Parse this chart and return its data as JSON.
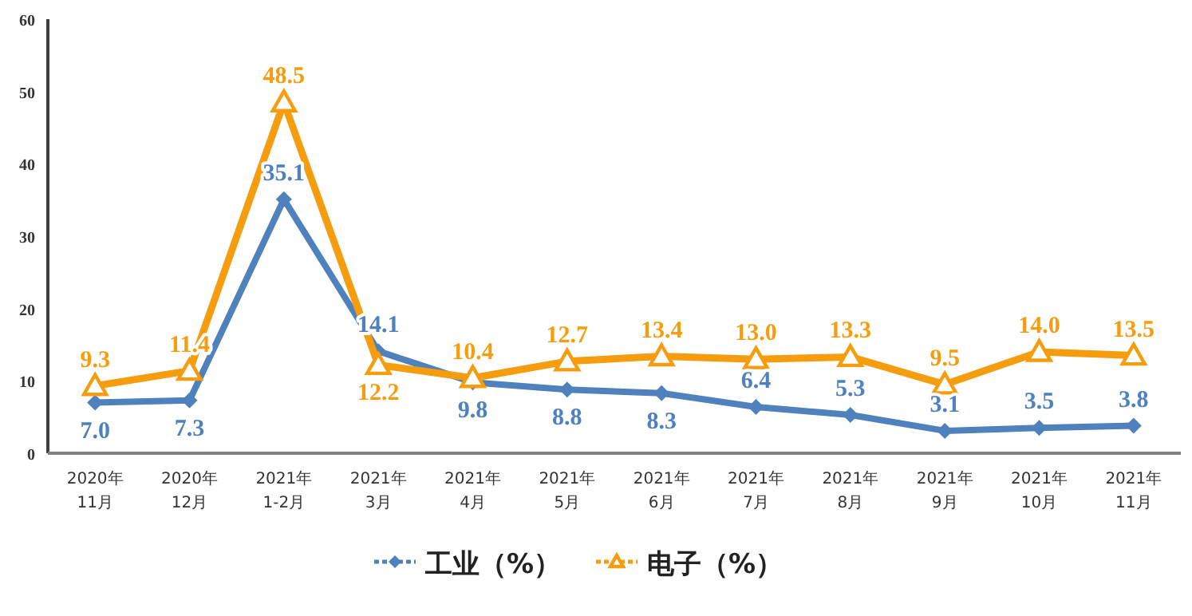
{
  "chart_data": {
    "type": "line",
    "categories": [
      "2020年\n11月",
      "2020年\n12月",
      "2021年\n1-2月",
      "2021年\n3月",
      "2021年\n4月",
      "2021年\n5月",
      "2021年\n6月",
      "2021年\n7月",
      "2021年\n8月",
      "2021年\n9月",
      "2021年\n10月",
      "2021年\n11月"
    ],
    "series": [
      {
        "name": "工业（%）",
        "color": "#4f81bd",
        "marker": "diamond",
        "values": [
          7.0,
          7.3,
          35.1,
          14.1,
          9.8,
          8.8,
          8.3,
          6.4,
          5.3,
          3.1,
          3.5,
          3.8
        ],
        "value_labels": [
          "7.0",
          "7.3",
          "35.1",
          "14.1",
          "9.8",
          "8.8",
          "8.3",
          "6.4",
          "5.3",
          "3.1",
          "3.5",
          "3.8"
        ]
      },
      {
        "name": "电子（%）",
        "color": "#f59d0e",
        "marker": "triangle",
        "values": [
          9.3,
          11.4,
          48.5,
          12.2,
          10.4,
          12.7,
          13.4,
          13.0,
          13.3,
          9.5,
          14.0,
          13.5
        ],
        "value_labels": [
          "9.3",
          "11.4",
          "48.5",
          "12.2",
          "10.4",
          "12.7",
          "13.4",
          "13.0",
          "13.3",
          "9.5",
          "14.0",
          "13.5"
        ]
      }
    ],
    "ylim": [
      0,
      60
    ],
    "yticks": [
      0,
      10,
      20,
      30,
      40,
      50,
      60
    ],
    "legend": "bottom",
    "line_style": "solid"
  }
}
